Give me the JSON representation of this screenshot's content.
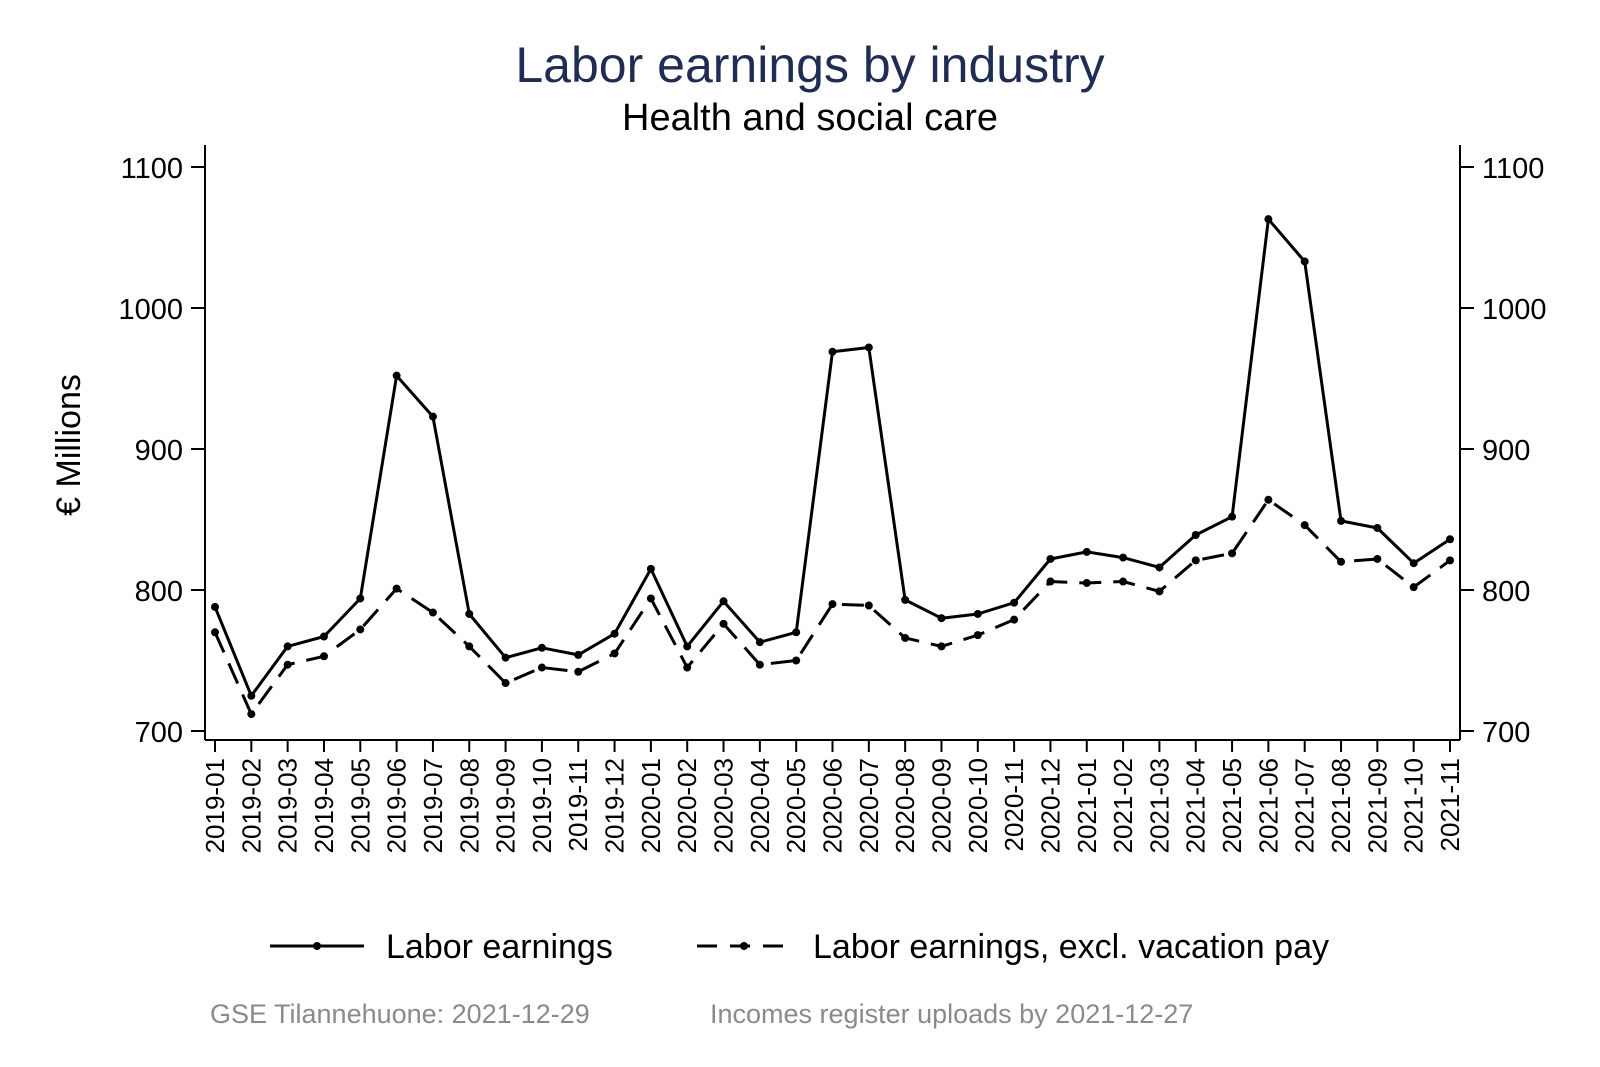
{
  "chart_data": {
    "type": "line",
    "title": "Labor earnings by industry",
    "subtitle": "Health and social care",
    "ylabel": "€ Millions",
    "xlabel": "",
    "ylim": [
      700,
      1100
    ],
    "y_ticks": [
      700,
      800,
      900,
      1000,
      1100
    ],
    "right_axis": true,
    "grid": false,
    "legend_position": "bottom",
    "categories": [
      "2019-01",
      "2019-02",
      "2019-03",
      "2019-04",
      "2019-05",
      "2019-06",
      "2019-07",
      "2019-08",
      "2019-09",
      "2019-10",
      "2019-11",
      "2019-12",
      "2020-01",
      "2020-02",
      "2020-03",
      "2020-04",
      "2020-05",
      "2020-06",
      "2020-07",
      "2020-08",
      "2020-09",
      "2020-10",
      "2020-11",
      "2020-12",
      "2021-01",
      "2021-02",
      "2021-03",
      "2021-04",
      "2021-05",
      "2021-06",
      "2021-07",
      "2021-08",
      "2021-09",
      "2021-10",
      "2021-11"
    ],
    "series": [
      {
        "name": "Labor earnings",
        "style": "solid",
        "color": "#000000",
        "values": [
          788,
          725,
          760,
          767,
          794,
          952,
          923,
          783,
          752,
          759,
          754,
          769,
          815,
          760,
          792,
          763,
          770,
          969,
          972,
          793,
          780,
          783,
          791,
          822,
          827,
          823,
          816,
          839,
          852,
          1063,
          1033,
          849,
          844,
          819,
          836
        ]
      },
      {
        "name": "Labor earnings, excl. vacation pay",
        "style": "dashed",
        "color": "#000000",
        "values": [
          770,
          712,
          747,
          753,
          772,
          801,
          784,
          760,
          734,
          745,
          742,
          755,
          794,
          745,
          776,
          747,
          750,
          790,
          789,
          766,
          760,
          768,
          779,
          806,
          805,
          806,
          799,
          821,
          826,
          864,
          846,
          820,
          822,
          802,
          821
        ]
      }
    ],
    "title_color": "#1f2d55"
  },
  "footer": {
    "source": "GSE Tilannehuone: 2021-12-29",
    "note": "Incomes register uploads by 2021-12-27"
  }
}
